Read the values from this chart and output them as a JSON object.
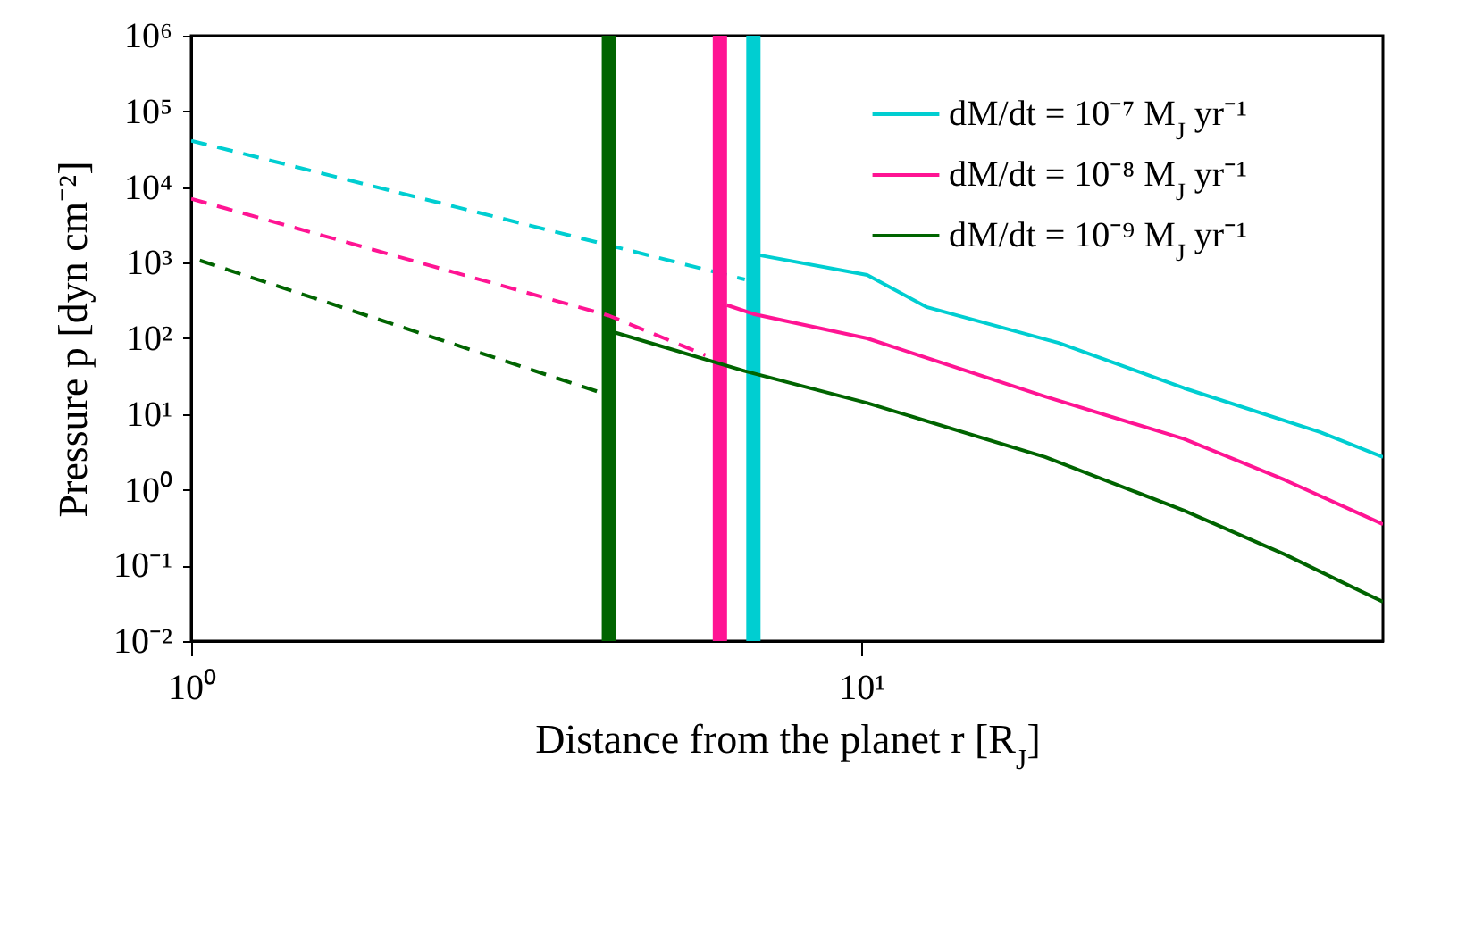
{
  "chart_data": {
    "type": "line",
    "xlabel": "Distance from the planet r [R$_{J}$]",
    "ylabel": "Pressure p [dyn cm⁻²]",
    "log": "xy",
    "xlim": [
      1,
      60
    ],
    "ylim": [
      0.01,
      1000000
    ],
    "xticks": [
      {
        "value": 1,
        "label": "10⁰"
      },
      {
        "value": 10,
        "label": "10¹"
      }
    ],
    "yticks": [
      {
        "value": 0.01,
        "label": "10⁻²"
      },
      {
        "value": 0.1,
        "label": "10⁻¹"
      },
      {
        "value": 1,
        "label": "10⁰"
      },
      {
        "value": 10,
        "label": "10¹"
      },
      {
        "value": 100,
        "label": "10²"
      },
      {
        "value": 1000,
        "label": "10³"
      },
      {
        "value": 10000,
        "label": "10⁴"
      },
      {
        "value": 100000,
        "label": "10⁵"
      },
      {
        "value": 1000000,
        "label": "10⁶"
      }
    ],
    "legend": "top right",
    "series": [
      {
        "color": "#00ced1",
        "line_style": "dashed",
        "x": [
          1,
          4.2,
          6.7
        ],
        "values": [
          41000,
          1700,
          600
        ]
      },
      {
        "color": "#ff1493",
        "line_style": "dashed",
        "x": [
          1,
          4.2,
          5.85
        ],
        "values": [
          7000,
          200,
          60
        ]
      },
      {
        "color": "#006400",
        "line_style": "dashed",
        "x": [
          1.03,
          4.1
        ],
        "values": [
          1070,
          19
        ]
      },
      {
        "name": "dM/dt = 10⁻⁷ M$_{J}$ yr⁻¹",
        "color": "#00ced1",
        "line_style": "solid",
        "x": [
          6.9,
          10.2,
          12.5,
          19.7,
          30.3,
          48.3,
          60
        ],
        "values": [
          1300,
          690,
          260,
          87,
          22,
          5.8,
          2.7
        ]
      },
      {
        "name": "dM/dt = 10⁻⁸ M$_{J}$ yr⁻¹",
        "color": "#ff1493",
        "line_style": "solid",
        "x": [
          6.3,
          6.9,
          10.2,
          18.8,
          30.3,
          42.8,
          60
        ],
        "values": [
          275,
          210,
          100,
          17,
          4.7,
          1.35,
          0.35
        ]
      },
      {
        "name": "dM/dt = 10⁻⁹ M$_{J}$ yr⁻¹",
        "color": "#006400",
        "line_style": "solid",
        "x": [
          4.28,
          6.7,
          10.2,
          18.8,
          30.3,
          42.8,
          60
        ],
        "values": [
          120,
          37,
          14,
          2.7,
          0.53,
          0.14,
          0.033
        ]
      }
    ],
    "ref_lines": [
      {
        "axis": "x",
        "value": 4.2,
        "color": "#006400"
      },
      {
        "axis": "x",
        "value": 6.15,
        "color": "#ff1493"
      },
      {
        "axis": "x",
        "value": 6.9,
        "color": "#00ced1"
      }
    ]
  }
}
